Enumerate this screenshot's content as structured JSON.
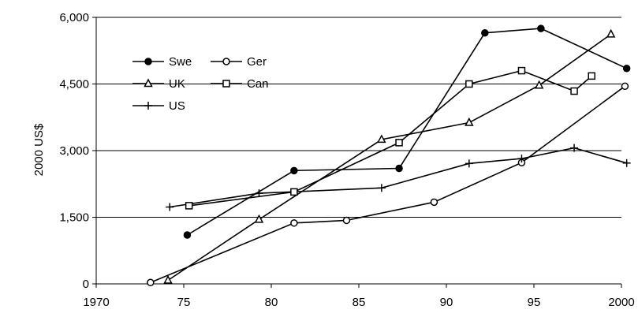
{
  "chart_data": {
    "type": "line",
    "ylabel": "2000 US$",
    "xlim": [
      1970,
      2000
    ],
    "ylim": [
      0,
      6000
    ],
    "x_ticks": [
      1970,
      1975,
      1980,
      1985,
      1990,
      1995,
      2000
    ],
    "x_tick_labels": [
      "1970",
      "75",
      "80",
      "85",
      "90",
      "95",
      "2000"
    ],
    "y_ticks": [
      0,
      1500,
      3000,
      4500,
      6000
    ],
    "y_tick_labels": [
      "0",
      "1,500",
      "3,000",
      "4,500",
      "6,000"
    ],
    "grid": "horizontal",
    "legend_position": "top-left",
    "series": [
      {
        "name": "Swe",
        "marker": "filled-circle",
        "points": [
          [
            1975.2,
            1100
          ],
          [
            1981.3,
            2550
          ],
          [
            1987.3,
            2600
          ],
          [
            1992.2,
            5650
          ],
          [
            1995.4,
            5750
          ],
          [
            2000.3,
            4850
          ]
        ]
      },
      {
        "name": "Ger",
        "marker": "open-circle",
        "points": [
          [
            1973.1,
            30
          ],
          [
            1981.3,
            1370
          ],
          [
            1984.3,
            1430
          ],
          [
            1989.3,
            1840
          ],
          [
            1994.3,
            2730
          ],
          [
            2000.2,
            4450
          ]
        ]
      },
      {
        "name": "UK",
        "marker": "open-triangle",
        "points": [
          [
            1974.1,
            80
          ],
          [
            1979.3,
            1450
          ],
          [
            1986.3,
            3250
          ],
          [
            1991.3,
            3630
          ],
          [
            1995.3,
            4470
          ],
          [
            1999.4,
            5620
          ]
        ]
      },
      {
        "name": "Can",
        "marker": "open-square",
        "points": [
          [
            1975.3,
            1760
          ],
          [
            1981.3,
            2070
          ],
          [
            1987.3,
            3180
          ],
          [
            1991.3,
            4500
          ],
          [
            1994.3,
            4800
          ],
          [
            1997.3,
            4340
          ],
          [
            1998.3,
            4680
          ]
        ]
      },
      {
        "name": "US",
        "marker": "plus",
        "points": [
          [
            1974.2,
            1730
          ],
          [
            1979.3,
            2040
          ],
          [
            1986.3,
            2160
          ],
          [
            1991.3,
            2710
          ],
          [
            1994.3,
            2820
          ],
          [
            1997.3,
            3060
          ],
          [
            2000.3,
            2720
          ]
        ]
      }
    ]
  }
}
